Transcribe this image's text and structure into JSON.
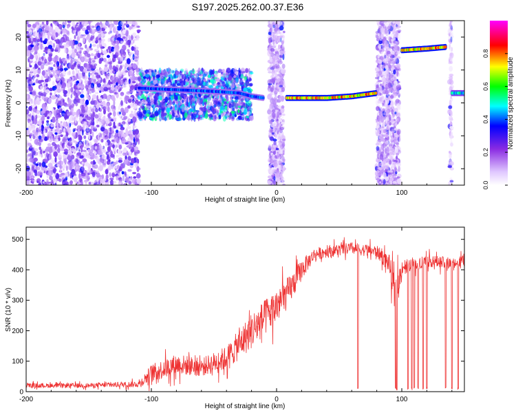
{
  "figure": {
    "title": "S197.2025.262.00.37.E36"
  },
  "chart_data": [
    {
      "type": "heatmap",
      "title": "S197.2025.262.00.37.E36",
      "xlabel": "Height of straight line (km)",
      "ylabel": "Frequency (Hz)",
      "xlim": [
        -200,
        150
      ],
      "ylim": [
        -25,
        25
      ],
      "x_ticks": [
        -200,
        -100,
        0,
        100
      ],
      "y_ticks": [
        -20,
        -10,
        0,
        10,
        20
      ],
      "colorbar": {
        "label": "Normalized spectral amplitude",
        "range": [
          0.0,
          1.0
        ],
        "ticks": [
          0.0,
          0.2,
          0.4,
          0.6,
          0.8
        ],
        "tick_labels": [
          "0.0",
          "0.2",
          "0.4",
          "0.6",
          "0.8"
        ],
        "colormap": [
          "#ffffff",
          "#d8b4fe",
          "#7c3aed",
          "#0000ff",
          "#00ffff",
          "#00ff00",
          "#ffff00",
          "#ff0000",
          "#ff00ff"
        ]
      },
      "noise_regions": [
        {
          "x": [
            -200,
            -110
          ],
          "f": [
            -25,
            25
          ],
          "level": 0.15
        },
        {
          "x": [
            -110,
            -20
          ],
          "f": [
            -5,
            10
          ],
          "level": 0.3
        },
        {
          "x": [
            -6,
            6
          ],
          "f": [
            -25,
            25
          ],
          "level": 0.12
        },
        {
          "x": [
            80,
            98
          ],
          "f": [
            -25,
            25
          ],
          "level": 0.12
        },
        {
          "x": [
            138,
            140
          ],
          "f": [
            -25,
            25
          ],
          "level": 0.08
        }
      ],
      "tracks": [
        {
          "x": [
            -110,
            -80,
            -50,
            -30,
            -20,
            -10
          ],
          "f": [
            4.5,
            4,
            3.5,
            3,
            2,
            1.5
          ],
          "amplitude": 0.45
        },
        {
          "x": [
            8,
            40,
            60,
            80
          ],
          "f": [
            1.5,
            1.5,
            2,
            3
          ],
          "amplitude": 0.85
        },
        {
          "x": [
            100,
            120,
            135
          ],
          "f": [
            16,
            16.5,
            17
          ],
          "amplitude": 0.85
        },
        {
          "x": [
            140,
            150
          ],
          "f": [
            3,
            3
          ],
          "amplitude": 0.55
        }
      ]
    },
    {
      "type": "line",
      "xlabel": "Height of straight line (km)",
      "ylabel": "SNR (10 * v/v)",
      "xlim": [
        -200,
        150
      ],
      "ylim": [
        0,
        540
      ],
      "x_ticks": [
        -200,
        -100,
        0,
        100
      ],
      "y_ticks": [
        0,
        100,
        200,
        300,
        400,
        500
      ],
      "series": [
        {
          "name": "SNR",
          "color": "#ee3333",
          "envelope_x": [
            -200,
            -150,
            -110,
            -100,
            -80,
            -60,
            -40,
            -20,
            0,
            10,
            20,
            30,
            40,
            60,
            80,
            90,
            95,
            100,
            120,
            140,
            150
          ],
          "envelope_mean": [
            20,
            20,
            25,
            60,
            90,
            80,
            110,
            200,
            280,
            330,
            400,
            450,
            460,
            470,
            460,
            420,
            300,
            410,
            430,
            420,
            430
          ],
          "envelope_spread": [
            15,
            15,
            20,
            60,
            70,
            60,
            80,
            120,
            120,
            100,
            70,
            40,
            40,
            40,
            40,
            60,
            150,
            50,
            40,
            40,
            40
          ],
          "dropouts_x": [
            65,
            95,
            96,
            105,
            108,
            110,
            113,
            117,
            120,
            135,
            140,
            145
          ]
        }
      ]
    }
  ]
}
